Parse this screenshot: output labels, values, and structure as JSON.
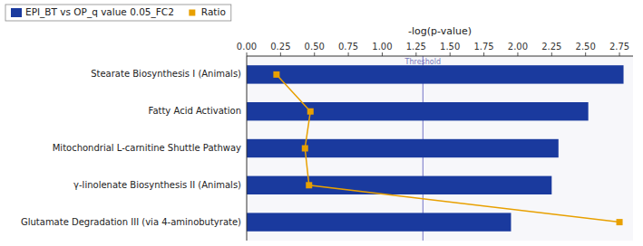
{
  "chart_data": {
    "type": "bar",
    "orientation": "horizontal",
    "categories": [
      "Stearate Biosynthesis I (Animals)",
      "Fatty Acid Activation",
      "Mitochondrial L-carnitine Shuttle Pathway",
      "γ-linolenate Biosynthesis II (Animals)",
      "Glutamate Degradation III (via 4-aminobutyrate)"
    ],
    "series": [
      {
        "name": "EPI_BT vs OP_q value 0.05_FC2",
        "type": "bar",
        "color": "#1a3a9e",
        "values": [
          2.78,
          2.52,
          2.3,
          2.25,
          1.95
        ]
      },
      {
        "name": "Ratio",
        "type": "line",
        "color": "#e8a000",
        "marker": "square",
        "values": [
          0.22,
          0.47,
          0.43,
          0.46,
          2.75
        ]
      }
    ],
    "xlabel": "-log(p-value)",
    "xlim": [
      0,
      2.85
    ],
    "xticks": [
      {
        "value": 0.0,
        "label": "0.00"
      },
      0.25,
      {
        "value": 0.5,
        "label": "0.50"
      },
      0.75,
      {
        "value": 1.0,
        "label": "1.00"
      },
      1.25,
      {
        "value": 1.5,
        "label": "1.50"
      },
      1.75,
      {
        "value": 2.0,
        "label": "2.00"
      },
      2.25,
      {
        "value": 2.5,
        "label": "2.50"
      },
      2.75
    ],
    "annotations": [
      {
        "x": 1.3,
        "label": "Threshold"
      }
    ],
    "grid": false,
    "legend": "top-left"
  }
}
